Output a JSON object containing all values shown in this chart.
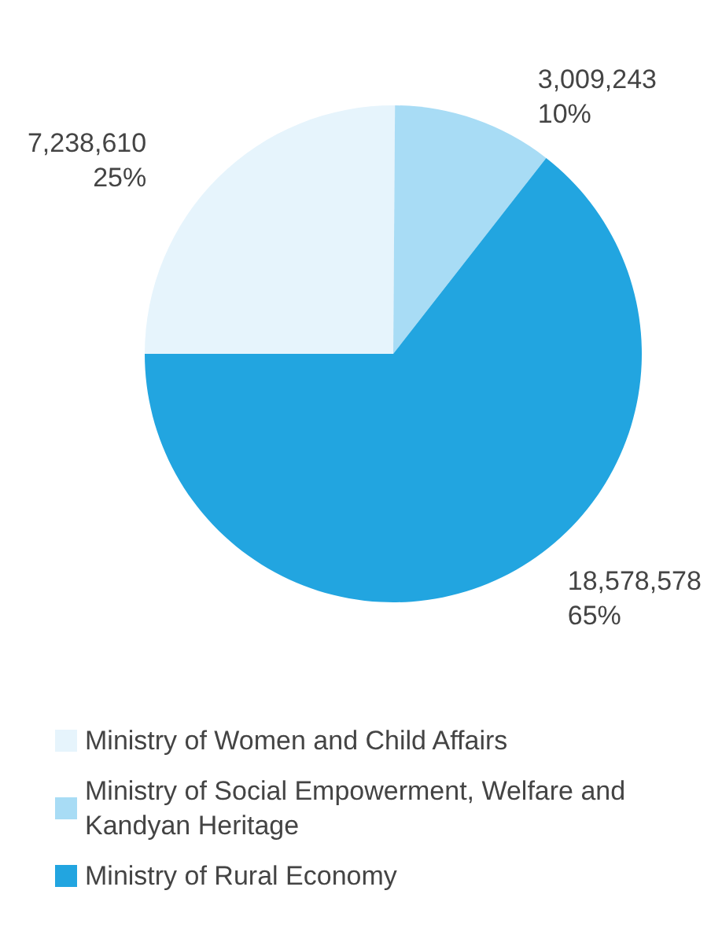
{
  "chart_data": {
    "type": "pie",
    "categories": [
      "Ministry of Women and Child Affairs",
      "Ministry of Social Empowerment, Welfare and Kandyan Heritage",
      "Ministry of Rural Economy"
    ],
    "values": [
      7238610,
      3009243,
      18578578
    ],
    "colors": [
      "#e6f4fc",
      "#a8dcf5",
      "#22a5e0"
    ],
    "value_labels": [
      "7,238,610\n25%",
      "3,009,243\n10%",
      "18,578,578\n65%"
    ],
    "legend": "bottom left"
  }
}
